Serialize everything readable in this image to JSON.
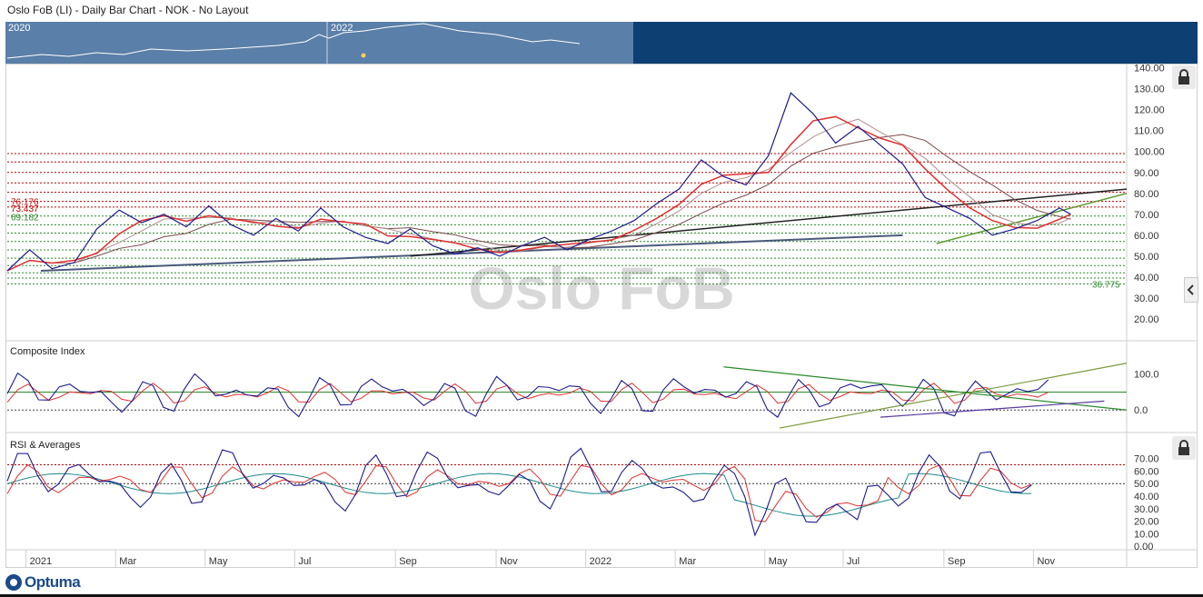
{
  "header": {
    "title": "Oslo FoB (LI) - Daily Bar Chart - NOK - No Layout"
  },
  "navigator": {
    "years": [
      "2020",
      "2022"
    ]
  },
  "watermark": "Oslo FoB",
  "branding": {
    "logo_text": "Optuma"
  },
  "colors": {
    "price": "#1c1c8c",
    "ma_red": "#e03030",
    "ma_teal": "#1a8a8a",
    "support_green": "#2a8a2a",
    "fib_red": "#c00000",
    "fib_green": "#2a8a2a"
  },
  "icons": [
    "lock-icon",
    "chevron-left-icon"
  ],
  "chart_data": [
    {
      "type": "line",
      "pane": "price",
      "title": "",
      "y_ticks": [
        "140.00",
        "130.00",
        "120.00",
        "110.00",
        "100.00",
        "90.00",
        "80.00",
        "70.00",
        "60.00",
        "50.00",
        "40.00",
        "30.00",
        "20.00"
      ],
      "ylim": [
        10,
        142
      ],
      "x_labels": [
        "2021",
        "Mar",
        "May",
        "Jul",
        "Sep",
        "Nov",
        "2022",
        "Mar",
        "May",
        "Jul",
        "Sep",
        "Nov"
      ],
      "level_labels": [
        "76.176",
        "73.437",
        "69.182",
        "36.775"
      ],
      "horizontal_levels_red": [
        99,
        95,
        90,
        85,
        80.5,
        76.176,
        73.437
      ],
      "horizontal_levels_green": [
        69.182,
        65,
        61,
        57,
        53,
        49,
        45.5,
        42,
        39.5,
        36.775
      ],
      "series": [
        {
          "x": [
            0,
            2,
            4,
            6,
            8,
            10,
            12,
            14,
            16,
            18,
            20,
            22,
            24,
            26,
            28,
            30,
            32,
            34,
            36,
            38,
            40,
            42,
            44,
            46,
            48,
            50,
            52,
            54,
            56,
            58,
            60,
            62,
            64,
            66,
            68,
            70,
            72,
            74,
            76,
            78,
            80,
            82,
            84,
            86,
            88,
            90,
            92,
            94,
            95
          ],
          "values": [
            43,
            53,
            44,
            47,
            63,
            72,
            66,
            70,
            64,
            74,
            65,
            60,
            68,
            62,
            73,
            64,
            59,
            56,
            63,
            55,
            51,
            54,
            50,
            55,
            59,
            53,
            58,
            62,
            67,
            75,
            82,
            96,
            88,
            84,
            98,
            128,
            118,
            104,
            112,
            103,
            94,
            78,
            73,
            68,
            60,
            63,
            67,
            73,
            70
          ]
        }
      ]
    },
    {
      "type": "line",
      "pane": "indicator",
      "title": "Composite Index",
      "y_ticks": [
        "100.0",
        "0.0"
      ],
      "ylim": [
        -60,
        190
      ],
      "reference_level": 50
    },
    {
      "type": "line",
      "pane": "indicator",
      "title": "RSI & Averages",
      "y_ticks": [
        "70.00",
        "60.00",
        "50.00",
        "40.00",
        "30.00",
        "20.00",
        "10.00",
        "0.00"
      ],
      "ylim": [
        -2,
        90
      ],
      "reference_levels": [
        65,
        50
      ]
    }
  ]
}
